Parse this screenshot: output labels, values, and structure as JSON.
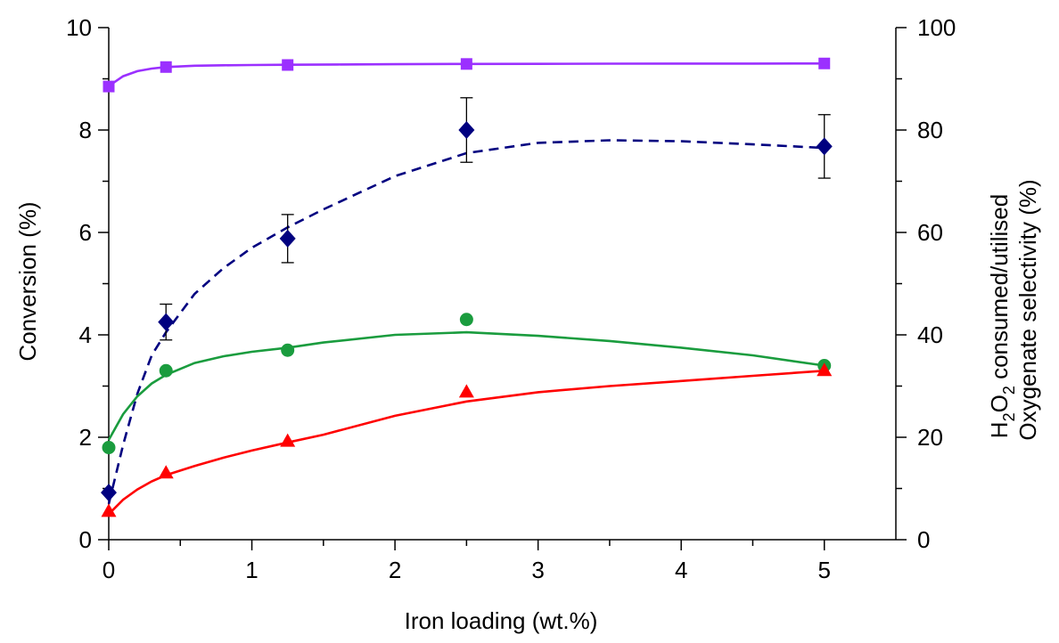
{
  "chart_data": {
    "type": "scatter",
    "x_axis": {
      "label": "Iron loading (wt.%)",
      "range": [
        0,
        5.5
      ],
      "ticks": [
        "0",
        "1",
        "2",
        "3",
        "4",
        "5"
      ],
      "tick_values": [
        0,
        1,
        2,
        3,
        4,
        5
      ],
      "minor_tick_values": [
        0.5,
        1.5,
        2.5,
        3.5,
        4.5
      ]
    },
    "y_axis_left": {
      "label": "Conversion (%)",
      "range": [
        0,
        10
      ],
      "ticks": [
        "0",
        "2",
        "4",
        "6",
        "8",
        "10"
      ],
      "tick_values": [
        0,
        2,
        4,
        6,
        8,
        10
      ],
      "minor_tick_values": [
        1,
        3,
        5,
        7,
        9
      ]
    },
    "y_axis_right": {
      "label_line1_before": "H",
      "label_line1_sub": "2",
      "label_line1_mid": "O",
      "label_line1_sub2": "2",
      "label_line1_after": " consumed/utilised",
      "label_line2": "Oxygenate selectivity (%)",
      "range": [
        0,
        100
      ],
      "ticks": [
        "0",
        "20",
        "40",
        "60",
        "80",
        "100"
      ],
      "tick_values": [
        0,
        20,
        40,
        60,
        80,
        100
      ],
      "minor_tick_values": [
        10,
        30,
        50,
        70,
        90
      ]
    },
    "grid": false,
    "series": [
      {
        "axis": "right",
        "marker": "square",
        "color": "#9b30ff",
        "x": [
          0,
          0.4,
          1.25,
          2.5,
          5
        ],
        "y": [
          88.5,
          92.3,
          92.7,
          92.9,
          93.0
        ],
        "fit_line": "solid",
        "fit_x": [
          0,
          0.1,
          0.2,
          0.3,
          0.4,
          0.6,
          0.8,
          1.0,
          1.25,
          1.6,
          2.0,
          2.5,
          3.0,
          3.5,
          4.0,
          4.5,
          5.0
        ],
        "fit_y": [
          88.6,
          90.5,
          91.5,
          92.0,
          92.3,
          92.55,
          92.65,
          92.7,
          92.75,
          92.8,
          92.85,
          92.9,
          92.93,
          92.95,
          92.97,
          92.98,
          93.0
        ]
      },
      {
        "axis": "left",
        "marker": "diamond",
        "color": "#000080",
        "x": [
          0,
          0.4,
          1.25,
          2.5,
          5
        ],
        "y": [
          0.92,
          4.25,
          5.88,
          8.0,
          7.68
        ],
        "error": [
          0,
          0.35,
          0.47,
          0.63,
          0.62
        ],
        "fit_line": "dashed",
        "fit_x": [
          0,
          0.1,
          0.2,
          0.3,
          0.4,
          0.6,
          0.8,
          1.0,
          1.25,
          1.5,
          2.0,
          2.5,
          3.0,
          3.5,
          4.0,
          4.5,
          5.0
        ],
        "fit_y": [
          0.7,
          1.85,
          2.85,
          3.6,
          4.05,
          4.8,
          5.3,
          5.7,
          6.1,
          6.45,
          7.1,
          7.55,
          7.75,
          7.8,
          7.78,
          7.72,
          7.65
        ]
      },
      {
        "axis": "left",
        "marker": "circle",
        "color": "#1a9c3e",
        "x": [
          0,
          0.4,
          1.25,
          2.5,
          5
        ],
        "y": [
          1.8,
          3.3,
          3.7,
          4.3,
          3.4
        ],
        "fit_line": "solid",
        "fit_x": [
          0,
          0.1,
          0.2,
          0.3,
          0.4,
          0.6,
          0.8,
          1.0,
          1.25,
          1.5,
          2.0,
          2.5,
          3.0,
          3.5,
          4.0,
          4.5,
          5.0
        ],
        "fit_y": [
          1.95,
          2.45,
          2.8,
          3.05,
          3.22,
          3.45,
          3.58,
          3.67,
          3.75,
          3.85,
          4.0,
          4.05,
          3.98,
          3.88,
          3.75,
          3.6,
          3.4
        ]
      },
      {
        "axis": "left",
        "marker": "triangle",
        "color": "#ff0000",
        "x": [
          0,
          0.4,
          1.25,
          2.5,
          5
        ],
        "y": [
          0.55,
          1.3,
          1.92,
          2.88,
          3.3
        ],
        "fit_line": "solid",
        "fit_x": [
          0,
          0.1,
          0.2,
          0.3,
          0.4,
          0.6,
          0.8,
          1.0,
          1.25,
          1.5,
          2.0,
          2.5,
          3.0,
          3.5,
          4.0,
          4.5,
          5.0
        ],
        "fit_y": [
          0.5,
          0.78,
          0.98,
          1.14,
          1.26,
          1.44,
          1.6,
          1.74,
          1.9,
          2.05,
          2.42,
          2.7,
          2.88,
          3.0,
          3.1,
          3.2,
          3.3
        ]
      }
    ]
  }
}
